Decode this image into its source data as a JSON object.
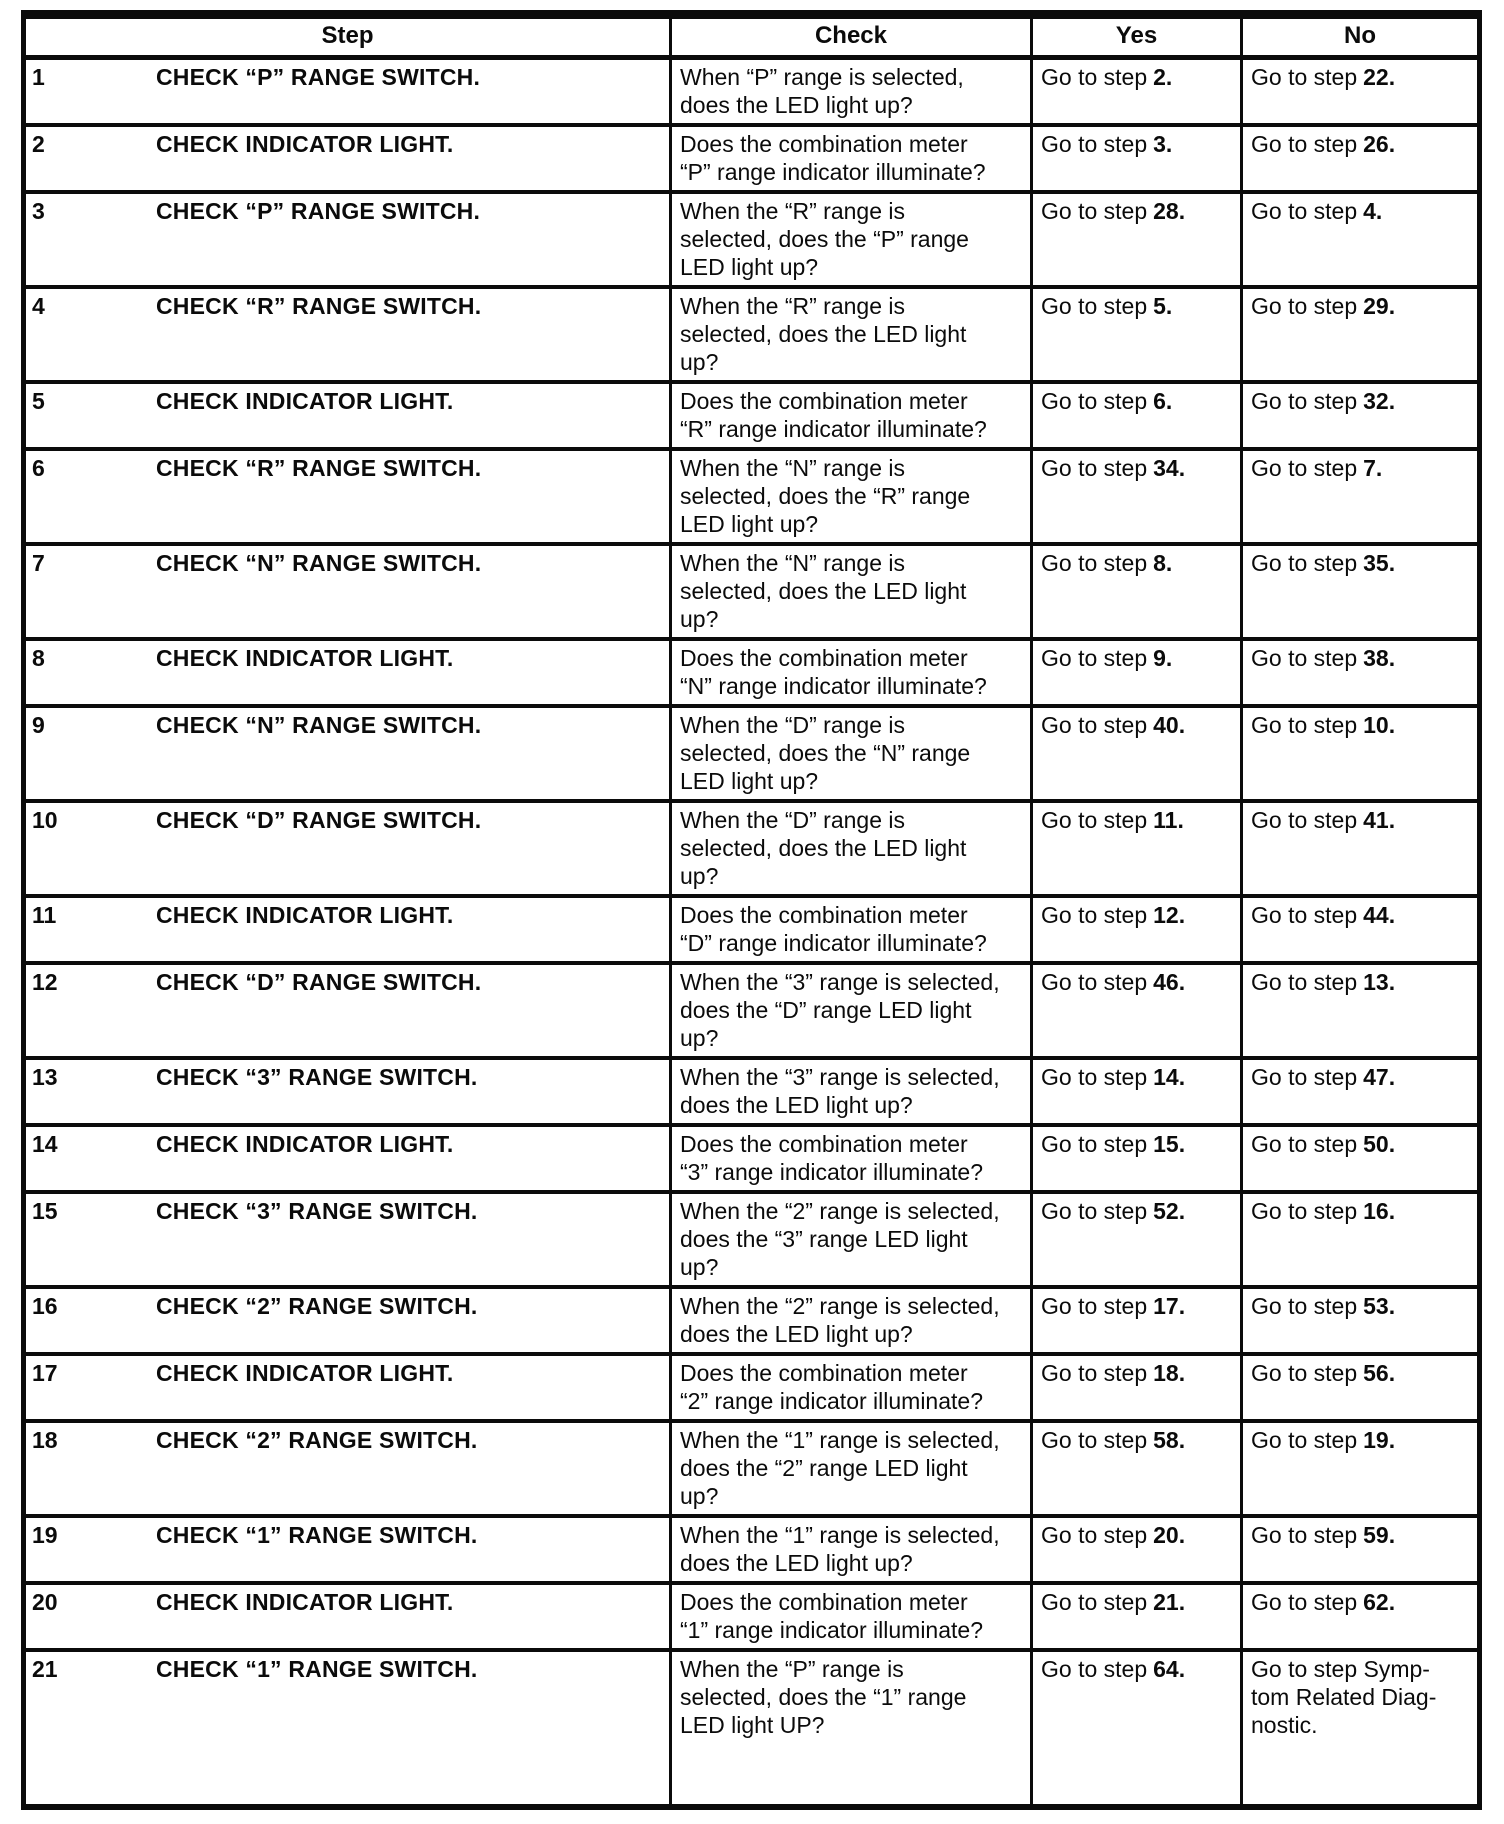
{
  "table": {
    "columns": {
      "step": "Step",
      "check": "Check",
      "yes": "Yes",
      "no": "No"
    },
    "rows": [
      {
        "num": "1",
        "action": "CHECK “P” RANGE SWITCH.",
        "check": "When “P” range is selected,\ndoes the LED light up?",
        "yes": {
          "text": "Go to step",
          "num": "2."
        },
        "no": {
          "text": "Go to step",
          "num": "22."
        }
      },
      {
        "num": "2",
        "action": "CHECK INDICATOR LIGHT.",
        "check": "Does the combination meter\n“P” range indicator illuminate?",
        "yes": {
          "text": "Go to step",
          "num": "3."
        },
        "no": {
          "text": "Go to step",
          "num": "26."
        }
      },
      {
        "num": "3",
        "action": "CHECK “P” RANGE SWITCH.",
        "check": "When the “R” range is\nselected, does the “P” range\nLED light up?",
        "yes": {
          "text": "Go to step",
          "num": "28."
        },
        "no": {
          "text": "Go to step",
          "num": "4."
        }
      },
      {
        "num": "4",
        "action": "CHECK “R” RANGE SWITCH.",
        "check": "When the “R” range is\nselected, does the LED light\nup?",
        "yes": {
          "text": "Go to step",
          "num": "5."
        },
        "no": {
          "text": "Go to step",
          "num": "29."
        }
      },
      {
        "num": "5",
        "action": "CHECK INDICATOR LIGHT.",
        "check": "Does the combination meter\n“R” range indicator illuminate?",
        "yes": {
          "text": "Go to step",
          "num": "6."
        },
        "no": {
          "text": "Go to step",
          "num": "32."
        }
      },
      {
        "num": "6",
        "action": "CHECK “R” RANGE SWITCH.",
        "check": "When the “N” range is\nselected, does the “R” range\nLED light up?",
        "yes": {
          "text": "Go to step",
          "num": "34."
        },
        "no": {
          "text": "Go to step",
          "num": "7."
        }
      },
      {
        "num": "7",
        "action": "CHECK “N” RANGE SWITCH.",
        "check": "When the “N” range is\nselected, does the LED light\nup?",
        "yes": {
          "text": "Go to step",
          "num": "8."
        },
        "no": {
          "text": "Go to step",
          "num": "35."
        }
      },
      {
        "num": "8",
        "action": "CHECK INDICATOR LIGHT.",
        "check": "Does the combination meter\n“N” range indicator illuminate?",
        "yes": {
          "text": "Go to step",
          "num": "9."
        },
        "no": {
          "text": "Go to step",
          "num": "38."
        }
      },
      {
        "num": "9",
        "action": "CHECK “N” RANGE SWITCH.",
        "check": "When the “D” range is\nselected, does the “N” range\nLED light up?",
        "yes": {
          "text": "Go to step",
          "num": "40."
        },
        "no": {
          "text": "Go to step",
          "num": "10."
        }
      },
      {
        "num": "10",
        "action": "CHECK “D” RANGE SWITCH.",
        "check": "When the “D” range is\nselected, does the LED light\nup?",
        "yes": {
          "text": "Go to step",
          "num": "11."
        },
        "no": {
          "text": "Go to step",
          "num": "41."
        }
      },
      {
        "num": "11",
        "action": "CHECK INDICATOR LIGHT.",
        "check": "Does the combination meter\n“D” range indicator illuminate?",
        "yes": {
          "text": "Go to step",
          "num": "12."
        },
        "no": {
          "text": "Go to step",
          "num": "44."
        }
      },
      {
        "num": "12",
        "action": "CHECK “D” RANGE SWITCH.",
        "check": "When the “3” range is selected,\ndoes the “D” range LED light\nup?",
        "yes": {
          "text": "Go to step",
          "num": "46."
        },
        "no": {
          "text": "Go to step",
          "num": "13."
        }
      },
      {
        "num": "13",
        "action": "CHECK “3” RANGE SWITCH.",
        "check": "When the “3” range is selected,\ndoes the LED light up?",
        "yes": {
          "text": "Go to step",
          "num": "14."
        },
        "no": {
          "text": "Go to step",
          "num": "47."
        }
      },
      {
        "num": "14",
        "action": "CHECK INDICATOR LIGHT.",
        "check": "Does the combination meter\n“3” range indicator illuminate?",
        "yes": {
          "text": "Go to step",
          "num": "15."
        },
        "no": {
          "text": "Go to step",
          "num": "50."
        }
      },
      {
        "num": "15",
        "action": "CHECK “3” RANGE SWITCH.",
        "check": "When the “2” range is selected,\ndoes the “3” range LED light\nup?",
        "yes": {
          "text": "Go to step",
          "num": "52."
        },
        "no": {
          "text": "Go to step",
          "num": "16."
        }
      },
      {
        "num": "16",
        "action": "CHECK “2” RANGE SWITCH.",
        "check": "When the “2” range is selected,\ndoes the LED light up?",
        "yes": {
          "text": "Go to step",
          "num": "17."
        },
        "no": {
          "text": "Go to step",
          "num": "53."
        }
      },
      {
        "num": "17",
        "action": "CHECK INDICATOR LIGHT.",
        "check": "Does the combination meter\n“2” range indicator illuminate?",
        "yes": {
          "text": "Go to step",
          "num": "18."
        },
        "no": {
          "text": "Go to step",
          "num": "56."
        }
      },
      {
        "num": "18",
        "action": "CHECK “2” RANGE SWITCH.",
        "check": "When the “1” range is selected,\ndoes the “2” range LED light\nup?",
        "yes": {
          "text": "Go to step",
          "num": "58."
        },
        "no": {
          "text": "Go to step",
          "num": "19."
        }
      },
      {
        "num": "19",
        "action": "CHECK “1” RANGE SWITCH.",
        "check": "When the “1” range is selected,\ndoes the LED light up?",
        "yes": {
          "text": "Go to step",
          "num": "20."
        },
        "no": {
          "text": "Go to step",
          "num": "59."
        }
      },
      {
        "num": "20",
        "action": "CHECK INDICATOR LIGHT.",
        "check": "Does the combination meter\n“1” range indicator illuminate?",
        "yes": {
          "text": "Go to step",
          "num": "21."
        },
        "no": {
          "text": "Go to step",
          "num": "62."
        }
      },
      {
        "num": "21",
        "action": "CHECK “1” RANGE SWITCH.",
        "check": "When the “P” range is\nselected, does the “1” range\nLED light UP?",
        "yes": {
          "text": "Go to step",
          "num": "64."
        },
        "no": {
          "text": "Go to step Symp-\ntom Related Diag-\nnostic.",
          "num": ""
        }
      }
    ]
  },
  "colors": {
    "ink": "#0b0b0b",
    "paper": "#ffffff"
  }
}
